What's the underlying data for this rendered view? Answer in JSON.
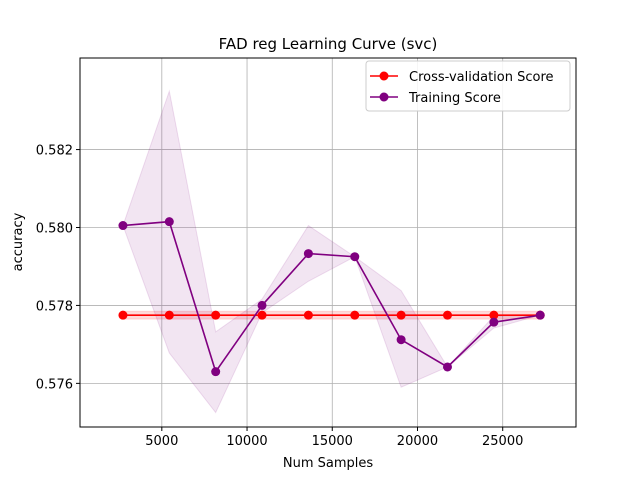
{
  "chart_data": {
    "type": "line",
    "title": "FAD reg Learning Curve (svc)",
    "xlabel": "Num Samples",
    "ylabel": "accuracy",
    "xlim": [
      200,
      29300
    ],
    "ylim": [
      0.57488,
      0.58435
    ],
    "xticks": [
      5000,
      10000,
      15000,
      20000,
      25000
    ],
    "xtick_labels": [
      "5000",
      "10000",
      "15000",
      "20000",
      "25000"
    ],
    "yticks": [
      0.576,
      0.578,
      0.58,
      0.582
    ],
    "ytick_labels": [
      "0.576",
      "0.578",
      "0.580",
      "0.582"
    ],
    "grid": true,
    "legend_position": "top-right",
    "x": [
      2720,
      5440,
      8160,
      10880,
      13600,
      16320,
      19040,
      21760,
      24480,
      27200
    ],
    "series": [
      {
        "name": "Cross-validation Score",
        "color": "#ff0000",
        "values": [
          0.57775,
          0.57775,
          0.57775,
          0.57775,
          0.57775,
          0.57775,
          0.57775,
          0.57775,
          0.57775,
          0.57775
        ],
        "band_lower": [
          0.57765,
          0.57765,
          0.57765,
          0.57765,
          0.57765,
          0.57765,
          0.57765,
          0.57765,
          0.57765,
          0.57765
        ],
        "band_upper": [
          0.57785,
          0.57785,
          0.57785,
          0.57785,
          0.57785,
          0.57785,
          0.57785,
          0.57785,
          0.57785,
          0.57785
        ]
      },
      {
        "name": "Training Score",
        "color": "#800080",
        "values": [
          0.58005,
          0.58015,
          0.5763,
          0.578,
          0.57933,
          0.57925,
          0.57712,
          0.57642,
          0.57757,
          0.57775
        ],
        "band_lower": [
          0.58005,
          0.57678,
          0.57525,
          0.57781,
          0.57862,
          0.57925,
          0.5759,
          0.57642,
          0.57742,
          0.57775
        ],
        "band_upper": [
          0.58005,
          0.5835,
          0.57732,
          0.57816,
          0.58005,
          0.57925,
          0.57838,
          0.57642,
          0.57773,
          0.57775
        ]
      }
    ]
  }
}
